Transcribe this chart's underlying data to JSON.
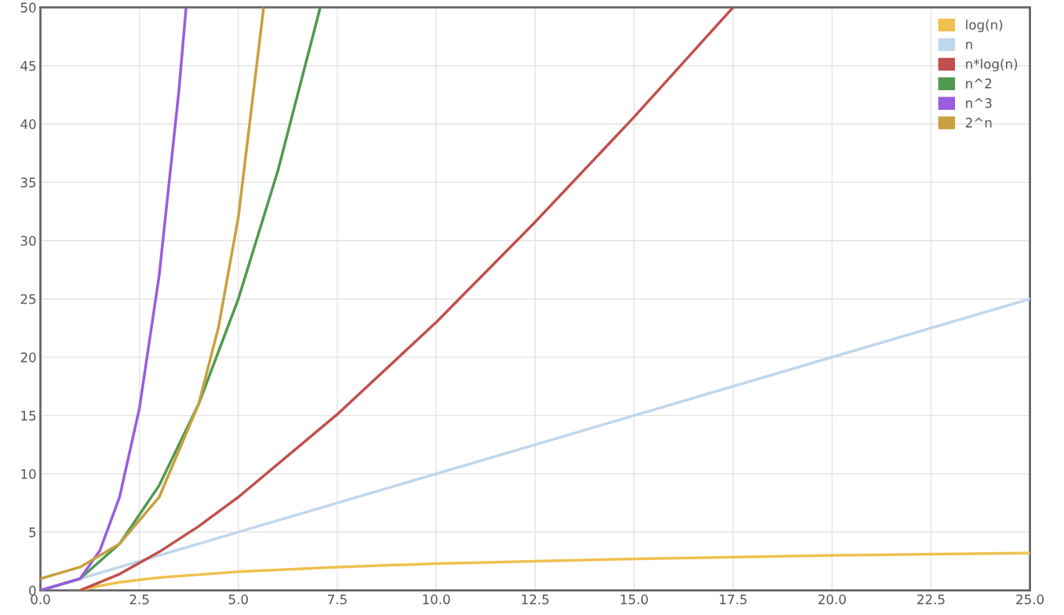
{
  "chart_data": {
    "type": "line",
    "series": [
      {
        "name": "log(n)",
        "color": "#f0c050",
        "x": [
          1,
          1.5,
          2,
          3,
          5,
          7.5,
          10,
          15,
          20,
          25
        ],
        "values": [
          0,
          0.4,
          0.7,
          1.1,
          1.6,
          2.0,
          2.3,
          2.7,
          3.0,
          3.2
        ]
      },
      {
        "name": "n",
        "color": "#c0d6ec",
        "x": [
          0,
          25
        ],
        "values": [
          0,
          25
        ]
      },
      {
        "name": "n*log(n)",
        "color": "#c0504d",
        "x": [
          1,
          2,
          3,
          4,
          5,
          7.5,
          10,
          12.5,
          15,
          17.5
        ],
        "values": [
          0,
          1.4,
          3.3,
          5.5,
          8.0,
          15.1,
          23.0,
          31.6,
          40.6,
          50
        ]
      },
      {
        "name": "n^2",
        "color": "#4f9a4f",
        "x": [
          0,
          1,
          2,
          3,
          4,
          5,
          6,
          7.07
        ],
        "values": [
          0,
          1,
          4,
          9,
          16,
          25,
          36,
          50
        ]
      },
      {
        "name": "n^3",
        "color": "#9a5ce0",
        "x": [
          0,
          1,
          1.5,
          2,
          2.5,
          3,
          3.5,
          3.68
        ],
        "values": [
          0,
          1,
          3.4,
          8,
          15.6,
          27,
          42.9,
          50
        ]
      },
      {
        "name": "2^n",
        "color": "#c8a040",
        "x": [
          0,
          1,
          2,
          3,
          4,
          4.5,
          5,
          5.64
        ],
        "values": [
          1,
          2,
          4,
          8,
          16,
          22.6,
          32,
          50
        ]
      }
    ],
    "xlim": [
      0,
      25
    ],
    "ylim": [
      0,
      50
    ],
    "xticks": [
      {
        "value": 0,
        "label": "0.0"
      },
      {
        "value": 2.5,
        "label": "2.5"
      },
      {
        "value": 5,
        "label": "5.0"
      },
      {
        "value": 7.5,
        "label": "7.5"
      },
      {
        "value": 10,
        "label": "10.0"
      },
      {
        "value": 12.5,
        "label": "12.5"
      },
      {
        "value": 15,
        "label": "15.0"
      },
      {
        "value": 17.5,
        "label": "17.5"
      },
      {
        "value": 20,
        "label": "20.0"
      },
      {
        "value": 22.5,
        "label": "22.5"
      },
      {
        "value": 25,
        "label": "25.0"
      }
    ],
    "yticks": [
      0,
      5,
      10,
      15,
      20,
      25,
      30,
      35,
      40,
      45,
      50
    ],
    "grid": true,
    "legend": "top right",
    "marker": "none",
    "line_style": "solid"
  }
}
